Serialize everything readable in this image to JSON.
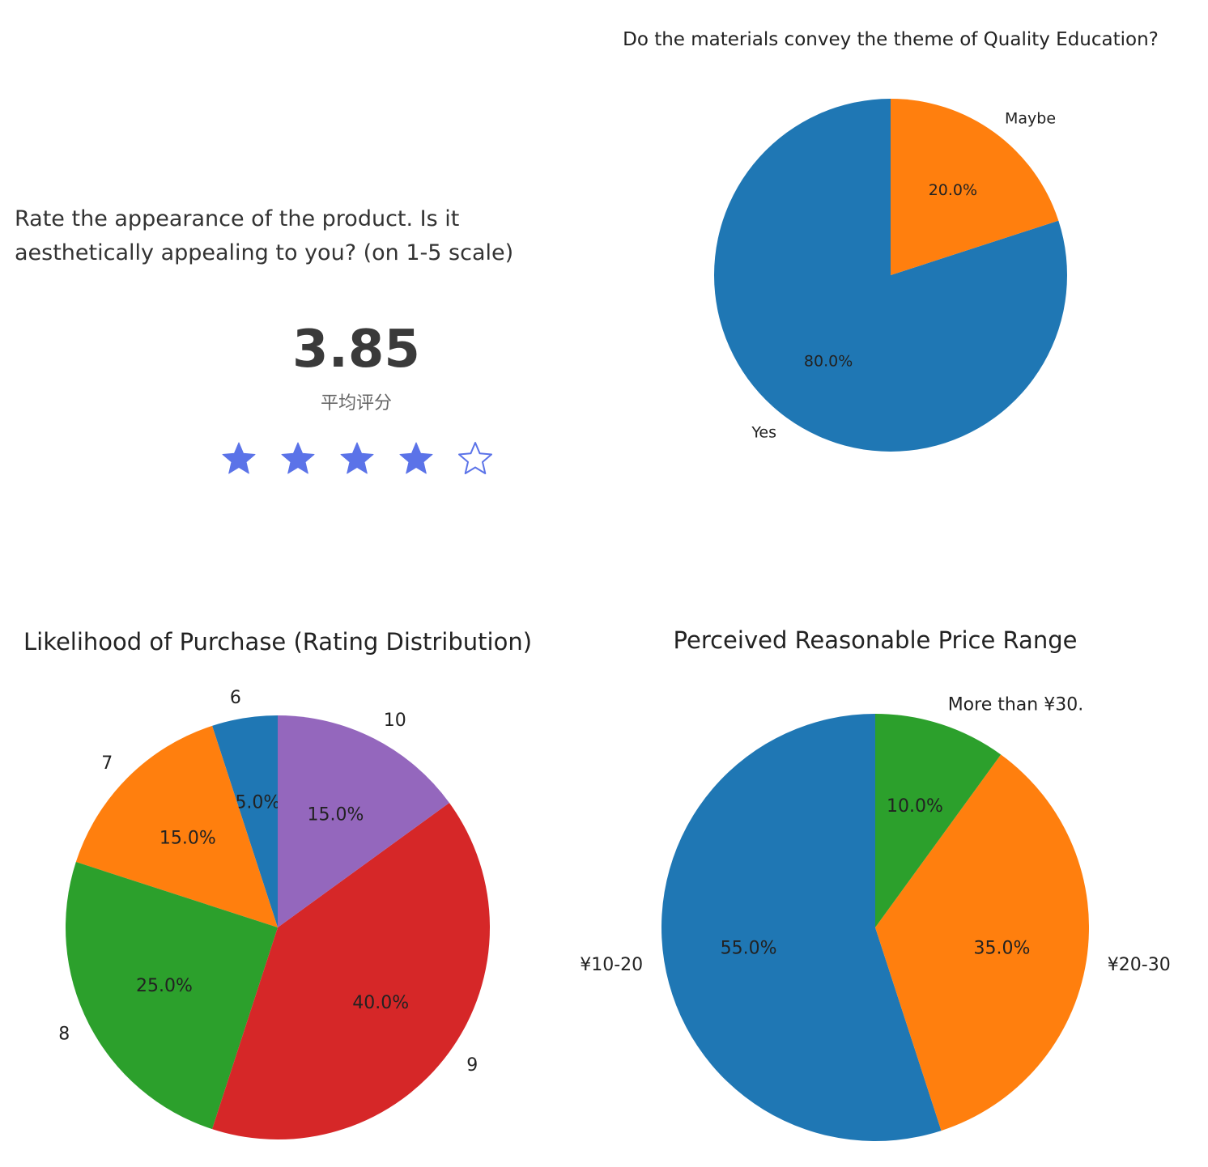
{
  "rating": {
    "question": "Rate the appearance of the product. Is it aesthetically appealing to you? (on 1-5 scale)",
    "average": "3.85",
    "average_label": "平均评分",
    "stars_filled": 4,
    "stars_total": 5,
    "star_color": "#5b73e8"
  },
  "chart_data": [
    {
      "type": "pie",
      "title": "Do the materials convey the theme of Quality Education?",
      "start_angle": 90,
      "direction": "counterclockwise",
      "slices": [
        {
          "label": "Yes",
          "value": 80.0,
          "pct_label": "80.0%",
          "color": "#1f77b4"
        },
        {
          "label": "Maybe",
          "value": 20.0,
          "pct_label": "20.0%",
          "color": "#ff7f0e"
        }
      ]
    },
    {
      "type": "pie",
      "title": "Likelihood of Purchase (Rating Distribution)",
      "start_angle": 90,
      "direction": "counterclockwise",
      "slices": [
        {
          "label": "6",
          "value": 5.0,
          "pct_label": "5.0%",
          "color": "#1f77b4"
        },
        {
          "label": "7",
          "value": 15.0,
          "pct_label": "15.0%",
          "color": "#ff7f0e"
        },
        {
          "label": "8",
          "value": 25.0,
          "pct_label": "25.0%",
          "color": "#2ca02c"
        },
        {
          "label": "9",
          "value": 40.0,
          "pct_label": "40.0%",
          "color": "#d62728"
        },
        {
          "label": "10",
          "value": 15.0,
          "pct_label": "15.0%",
          "color": "#9467bd"
        }
      ]
    },
    {
      "type": "pie",
      "title": "Perceived Reasonable Price Range",
      "start_angle": 90,
      "direction": "counterclockwise",
      "slices": [
        {
          "label": "¥10-20",
          "value": 55.0,
          "pct_label": "55.0%",
          "color": "#1f77b4"
        },
        {
          "label": "¥20-30",
          "value": 35.0,
          "pct_label": "35.0%",
          "color": "#ff7f0e"
        },
        {
          "label": "More than ¥30.",
          "value": 10.0,
          "pct_label": "10.0%",
          "color": "#2ca02c"
        }
      ]
    }
  ]
}
